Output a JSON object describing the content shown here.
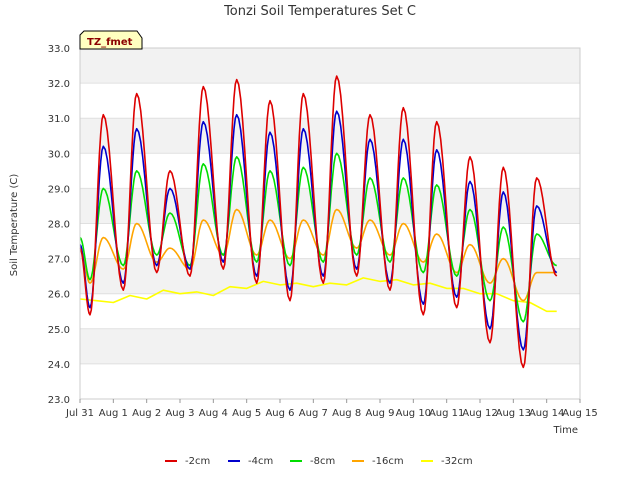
{
  "chart_data": {
    "type": "line",
    "title": "Tonzi Soil Temperatures Set C",
    "xlabel": "Time",
    "ylabel": "Soil Temperature (C)",
    "badge": "TZ_fmet",
    "x_ticks": [
      "Jul 31",
      "Aug 1",
      "Aug 2",
      "Aug 3",
      "Aug 4",
      "Aug 5",
      "Aug 6",
      "Aug 7",
      "Aug 8",
      "Aug 9",
      "Aug 10",
      "Aug 11",
      "Aug 12",
      "Aug 13",
      "Aug 14",
      "Aug 15"
    ],
    "xlim": [
      0,
      15
    ],
    "ylim": [
      23.0,
      33.0
    ],
    "y_ticks": [
      "23.0",
      "24.0",
      "25.0",
      "26.0",
      "27.0",
      "28.0",
      "29.0",
      "30.0",
      "31.0",
      "32.0",
      "33.0"
    ],
    "grid": "horizontal bands",
    "legend_position": "bottom",
    "series": [
      {
        "name": "-2cm",
        "color": "#dd0000",
        "daily_min": [
          25.4,
          26.1,
          26.6,
          26.5,
          26.7,
          26.3,
          25.8,
          26.3,
          26.5,
          26.1,
          25.4,
          25.6,
          24.6,
          23.9
        ],
        "daily_max": [
          31.1,
          31.7,
          29.5,
          31.9,
          32.1,
          31.5,
          31.7,
          32.2,
          31.1,
          31.3,
          30.9,
          29.9,
          29.6,
          29.3
        ],
        "start": 27.3,
        "end": 26.5
      },
      {
        "name": "-4cm",
        "color": "#0000cc",
        "daily_min": [
          25.6,
          26.3,
          26.8,
          26.7,
          26.9,
          26.5,
          26.1,
          26.5,
          26.7,
          26.3,
          25.7,
          25.9,
          25.0,
          24.4
        ],
        "daily_max": [
          30.2,
          30.7,
          29.0,
          30.9,
          31.1,
          30.6,
          30.7,
          31.2,
          30.4,
          30.4,
          30.1,
          29.2,
          28.9,
          28.5
        ],
        "start": 27.4,
        "end": 26.6
      },
      {
        "name": "-8cm",
        "color": "#00dd00",
        "daily_min": [
          26.4,
          26.8,
          27.1,
          26.8,
          27.1,
          26.9,
          26.8,
          26.9,
          27.1,
          26.9,
          26.6,
          26.5,
          25.8,
          25.2
        ],
        "daily_max": [
          29.0,
          29.5,
          28.3,
          29.7,
          29.9,
          29.5,
          29.6,
          30.0,
          29.3,
          29.3,
          29.1,
          28.4,
          27.9,
          27.7
        ],
        "start": 27.6,
        "end": 26.8
      },
      {
        "name": "-16cm",
        "color": "#ffa500",
        "daily_min": [
          26.3,
          26.7,
          26.9,
          26.7,
          27.1,
          27.1,
          27.0,
          27.1,
          27.3,
          27.1,
          26.9,
          26.6,
          26.3,
          25.8
        ],
        "daily_max": [
          27.6,
          28.0,
          27.3,
          28.1,
          28.4,
          28.1,
          28.1,
          28.4,
          28.1,
          28.0,
          27.7,
          27.4,
          27.0,
          26.6
        ],
        "start": 27.3,
        "end": 26.6
      },
      {
        "name": "-32cm",
        "color": "#ffff00",
        "points": [
          [
            0.0,
            25.85
          ],
          [
            0.5,
            25.8
          ],
          [
            1.0,
            25.75
          ],
          [
            1.5,
            25.95
          ],
          [
            2.0,
            25.85
          ],
          [
            2.5,
            26.1
          ],
          [
            3.0,
            26.0
          ],
          [
            3.5,
            26.05
          ],
          [
            4.0,
            25.95
          ],
          [
            4.5,
            26.2
          ],
          [
            5.0,
            26.15
          ],
          [
            5.5,
            26.35
          ],
          [
            6.0,
            26.25
          ],
          [
            6.5,
            26.3
          ],
          [
            7.0,
            26.2
          ],
          [
            7.5,
            26.3
          ],
          [
            8.0,
            26.25
          ],
          [
            8.5,
            26.45
          ],
          [
            9.0,
            26.35
          ],
          [
            9.5,
            26.4
          ],
          [
            10.0,
            26.25
          ],
          [
            10.5,
            26.3
          ],
          [
            11.0,
            26.15
          ],
          [
            11.5,
            26.15
          ],
          [
            12.0,
            26.0
          ],
          [
            12.5,
            26.0
          ],
          [
            13.0,
            25.8
          ],
          [
            13.5,
            25.75
          ],
          [
            14.0,
            25.5
          ],
          [
            14.3,
            25.5
          ]
        ]
      }
    ]
  }
}
